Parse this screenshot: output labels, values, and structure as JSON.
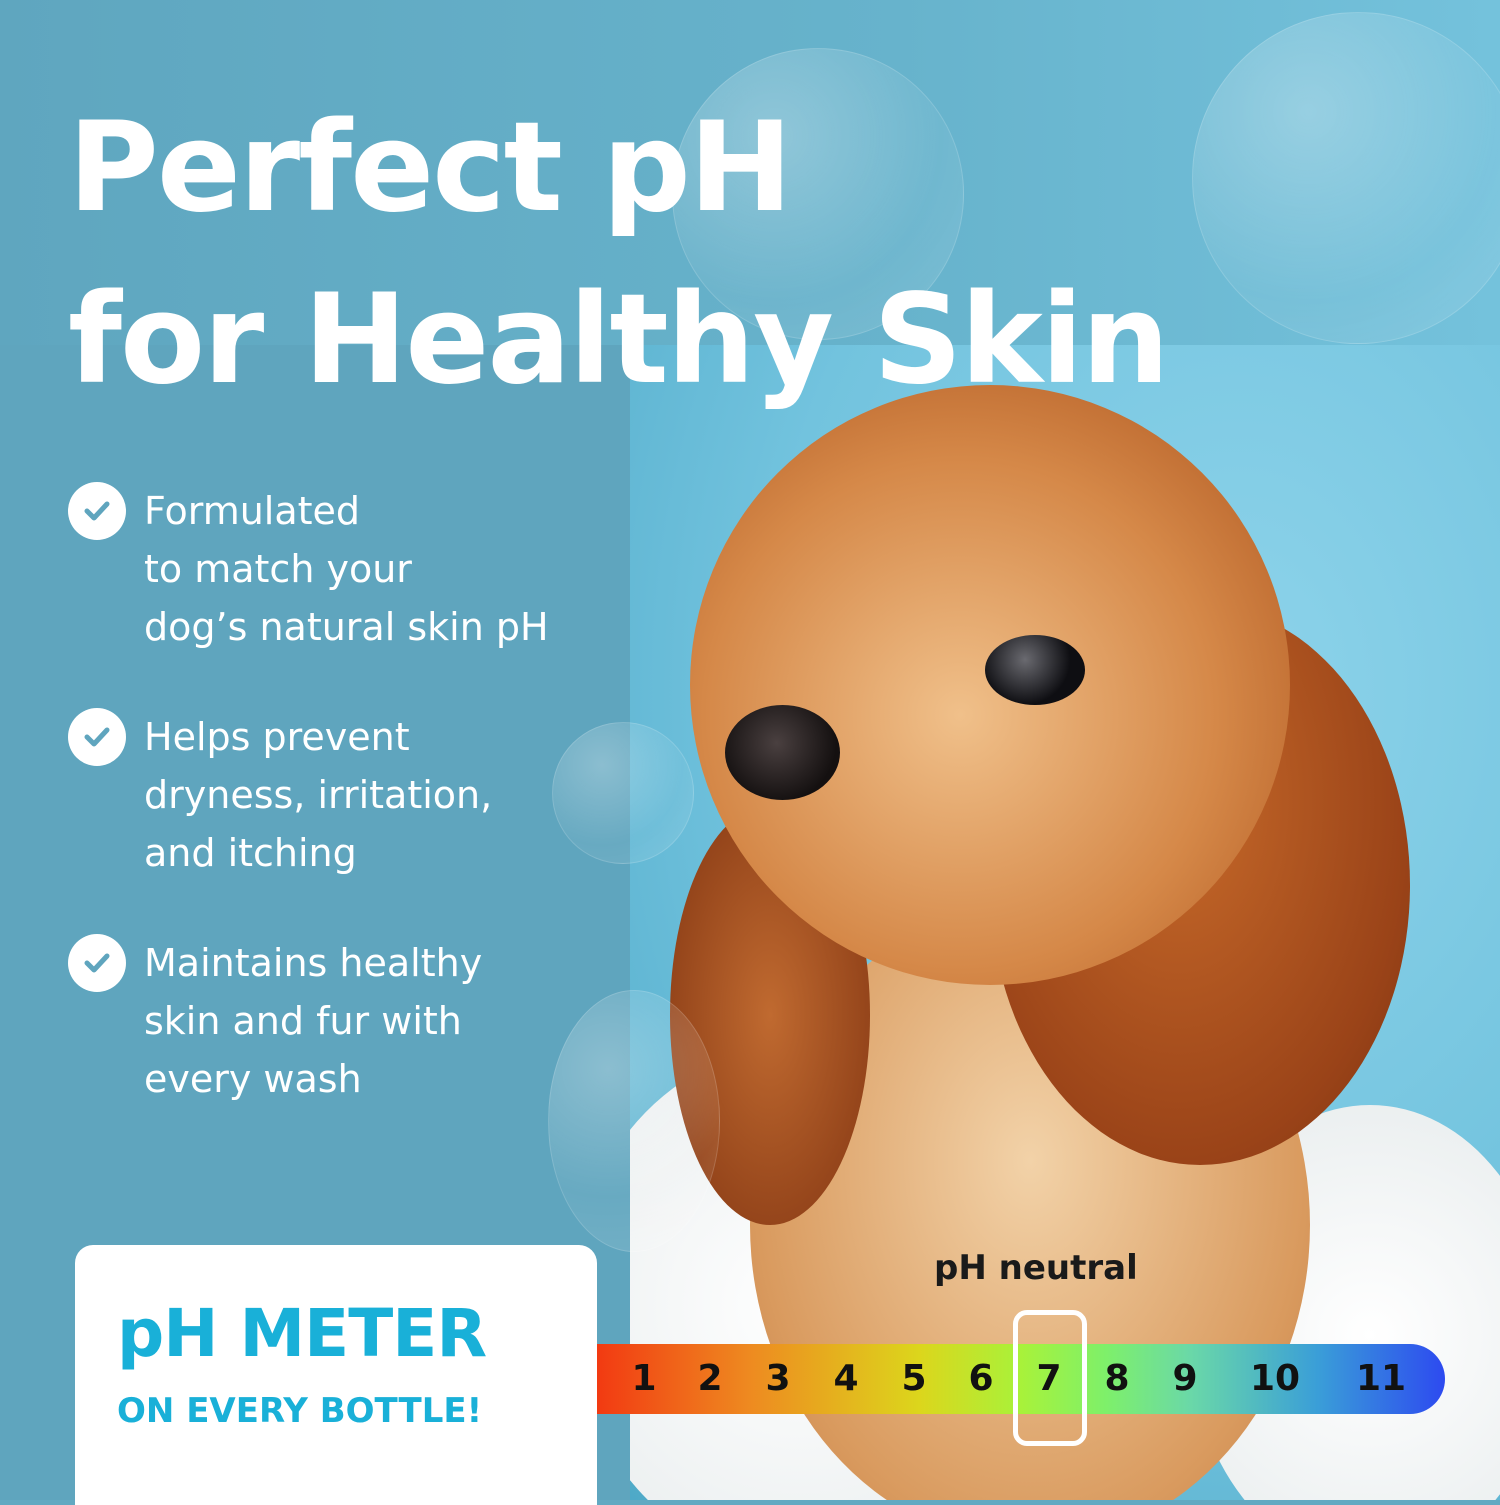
{
  "headline": {
    "line1": "Perfect pH",
    "line2": "for Healthy Skin"
  },
  "benefits": [
    {
      "icon": "check-circle-icon",
      "text": "Formulated\nto match your\ndog’s natural skin pH"
    },
    {
      "icon": "check-circle-icon",
      "text": "Helps prevent\ndryness, irritation,\nand itching"
    },
    {
      "icon": "check-circle-icon",
      "text": "Maintains healthy\nskin and fur with\nevery wash"
    }
  ],
  "callout": {
    "title": "pH METER",
    "subtitle": "ON EVERY BOTTLE!"
  },
  "ph_scale": {
    "label": "pH neutral",
    "values": [
      "1",
      "2",
      "3",
      "4",
      "5",
      "6",
      "7",
      "8",
      "9",
      "10",
      "11"
    ],
    "highlighted": "7"
  },
  "colors": {
    "accent": "#19b0d8",
    "panel": "#5fa5be",
    "photo_bg": "#7cc8e3"
  }
}
